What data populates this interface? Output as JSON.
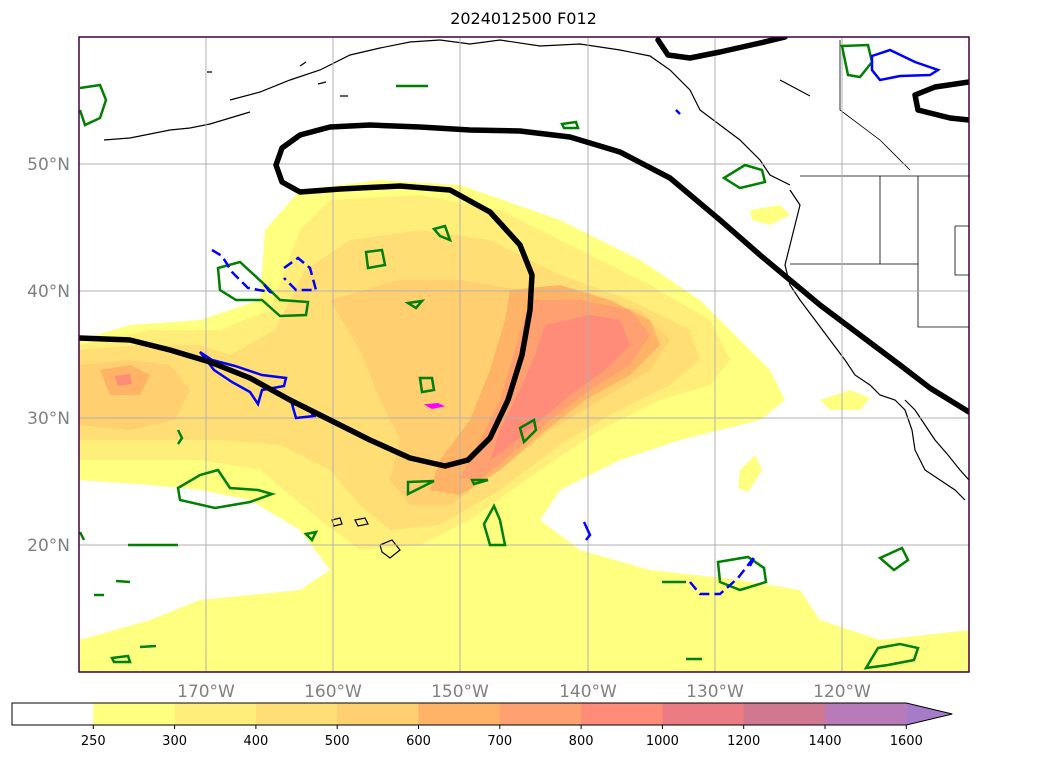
{
  "title": "2024012500 F012",
  "map": {
    "extent": {
      "lon_min": -180,
      "lon_max": -110,
      "lat_min": 10,
      "lat_max": 60
    },
    "lat_gridlines": [
      20,
      30,
      40,
      50
    ],
    "lon_gridlines": [
      -170,
      -160,
      -150,
      -140,
      -130,
      -120
    ],
    "lat_labels": [
      "20°N",
      "30°N",
      "40°N",
      "50°N"
    ],
    "lon_labels": [
      "170°W",
      "160°W",
      "150°W",
      "140°W",
      "130°W",
      "120°W"
    ]
  },
  "colorbar": {
    "levels": [
      "250",
      "300",
      "400",
      "500",
      "600",
      "700",
      "800",
      "1000",
      "1200",
      "1400",
      "1600"
    ],
    "colors": [
      "#ffff80",
      "#ffef7a",
      "#ffdf75",
      "#ffcf70",
      "#ffb366",
      "#ffa070",
      "#ff8c78",
      "#ec7c84",
      "#d07890",
      "#b87ab8",
      "#a67cc8"
    ],
    "extend": "max"
  },
  "legend_colors": {
    "thick_contour": "#000000",
    "green_contour": "#008000",
    "blue_contour": "#0000ff",
    "magenta_feature": "#ff00ff"
  }
}
